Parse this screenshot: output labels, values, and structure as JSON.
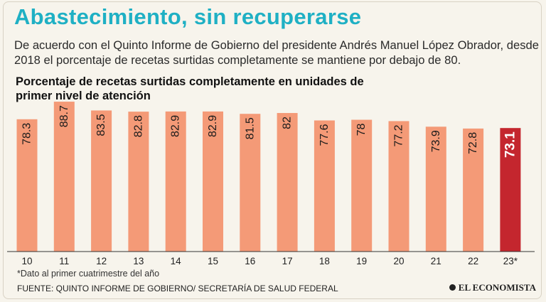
{
  "header": {
    "title": "Abastecimiento, sin recuperarse",
    "description": "De acuerdo con el Quinto Informe de Gobierno del presidente Andrés Manuel López Obrador, desde 2018 el porcentaje de recetas surtidas completamente se mantiene por debajo de 80."
  },
  "colors": {
    "accent": "#1fb0c4",
    "bar": "#f49a77",
    "highlight": "#c4262e"
  },
  "chart_data": {
    "type": "bar",
    "title": "Porcentaje de recetas surtidas completamente en unidades de primer nivel de atención",
    "categories": [
      "10",
      "11",
      "12",
      "13",
      "14",
      "15",
      "16",
      "17",
      "18",
      "19",
      "20",
      "21",
      "22",
      "23*"
    ],
    "values": [
      78.3,
      88.7,
      83.5,
      82.8,
      82.9,
      82.9,
      81.5,
      82,
      77.6,
      78,
      77.2,
      73.9,
      72.8,
      73.1
    ],
    "value_labels": [
      "78.3",
      "88.7",
      "83.5",
      "82.8",
      "82.9",
      "82.9",
      "81.5",
      "82",
      "77.6",
      "78",
      "77.2",
      "73.9",
      "72.8",
      "73.1"
    ],
    "highlight_index": 13,
    "ylim": [
      0,
      90
    ],
    "xlabel": "",
    "ylabel": "",
    "grid": false
  },
  "footer": {
    "footnote": "*Dato al primer cuatrimestre del año",
    "source": "FUENTE: QUINTO INFORME DE GOBIERNO/ SECRETARÍA DE SALUD FEDERAL",
    "brand": "EL ECONOMISTA",
    "brand_icon": "brand-dot-icon"
  }
}
